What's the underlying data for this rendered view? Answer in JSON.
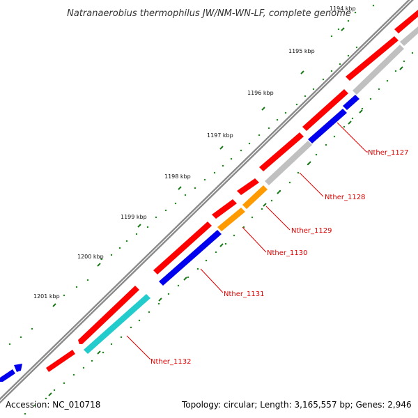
{
  "title": "Natranaerobius thermophilus JW/NM-WN-LF, complete genome",
  "colors": {
    "backbone": "#8a8a8a",
    "forward_cds": "#ff0000",
    "gene_red": "#ff0000",
    "gene_blue": "#0000ee",
    "gene_gray": "#c0c0c0",
    "gene_orange": "#ff9a00",
    "gene_cyan": "#22cccc",
    "tick_major": "#1a7a1a",
    "tick_dot": "#1a8a1a",
    "label": "#e00000"
  },
  "ticks": [
    "1194 kbp",
    "1195 kbp",
    "1196 kbp",
    "1197 kbp",
    "1198 kbp",
    "1199 kbp",
    "1200 kbp",
    "1201 kbp"
  ],
  "genes": [
    {
      "name": "Nther_1127",
      "color": "gene_blue"
    },
    {
      "name": "Nther_1128",
      "color": "gene_gray"
    },
    {
      "name": "Nther_1129",
      "color": "gene_orange"
    },
    {
      "name": "Nther_1130",
      "color": "gene_orange"
    },
    {
      "name": "Nther_1131",
      "color": "gene_blue"
    },
    {
      "name": "Nther_1132",
      "color": "gene_cyan"
    }
  ],
  "footer": {
    "accession": "Accession: NC_010718",
    "topology": "Topology: circular; Length: 3,165,557 bp; Genes: 2,946"
  }
}
